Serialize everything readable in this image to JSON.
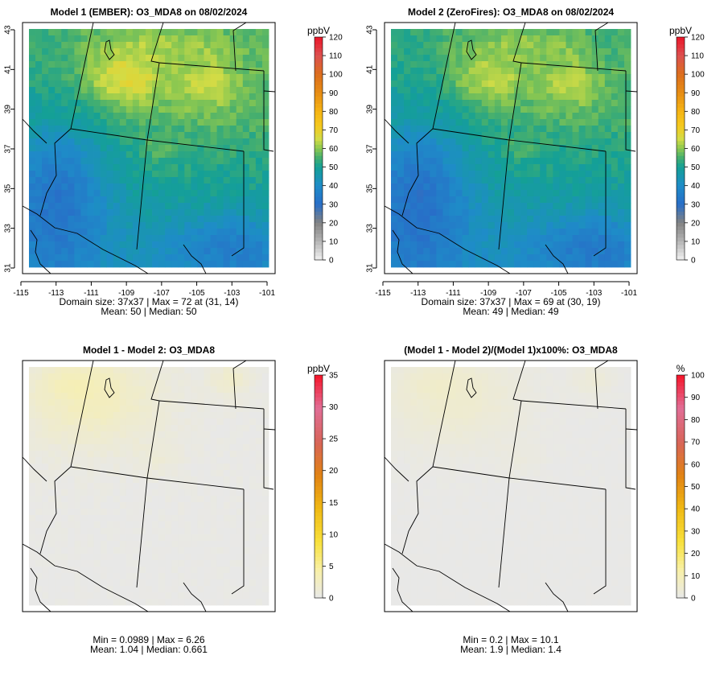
{
  "chart_data": [
    {
      "type": "heatmap",
      "title": "Model 1 (EMBER): O3_MDA8 on 08/02/2024",
      "colorbar_title": "ppbV",
      "colorbar_ticks": [
        "0",
        "10",
        "20",
        "30",
        "40",
        "50",
        "60",
        "70",
        "80",
        "90",
        "100",
        "110",
        "120"
      ],
      "x_ticks": [
        "-115",
        "-113",
        "-111",
        "-109",
        "-107",
        "-105",
        "-103",
        "-101"
      ],
      "y_ticks": [
        "31",
        "33",
        "35",
        "37",
        "39",
        "41",
        "43"
      ],
      "show_axes": true,
      "grid": false,
      "color_scheme": "ozone",
      "range": [
        0,
        120
      ],
      "stats_line1": "Domain size: 37x37 | Max = 72 at (31, 14)",
      "stats_line2": "Mean: 50 |  Median: 50",
      "max": 72,
      "mean": 50,
      "median": 50
    },
    {
      "type": "heatmap",
      "title": "Model 2 (ZeroFires): O3_MDA8 on 08/02/2024",
      "colorbar_title": "ppbV",
      "colorbar_ticks": [
        "0",
        "10",
        "20",
        "30",
        "40",
        "50",
        "60",
        "70",
        "80",
        "90",
        "100",
        "110",
        "120"
      ],
      "x_ticks": [
        "-115",
        "-113",
        "-111",
        "-109",
        "-107",
        "-105",
        "-103",
        "-101"
      ],
      "y_ticks": [
        "31",
        "33",
        "35",
        "37",
        "39",
        "41",
        "43"
      ],
      "show_axes": true,
      "grid": false,
      "color_scheme": "ozone",
      "range": [
        0,
        120
      ],
      "stats_line1": "Domain size: 37x37 | Max = 69 at (30, 19)",
      "stats_line2": "Mean: 49 |  Median: 49",
      "max": 69,
      "mean": 49,
      "median": 49
    },
    {
      "type": "heatmap",
      "title": "Model 1 - Model 2: O3_MDA8",
      "colorbar_title": "ppbV",
      "colorbar_ticks": [
        "0",
        "5",
        "10",
        "15",
        "20",
        "25",
        "30",
        "35"
      ],
      "x_ticks": [],
      "y_ticks": [],
      "show_axes": false,
      "grid": false,
      "color_scheme": "difference",
      "range": [
        0,
        35
      ],
      "stats_line1": "Min = 0.0989 | Max = 6.26",
      "stats_line2": "Mean: 1.04 |  Median: 0.661",
      "min": 0.0989,
      "max": 6.26,
      "mean": 1.04,
      "median": 0.661
    },
    {
      "type": "heatmap",
      "title": "(Model 1 - Model 2)/(Model 1)x100%: O3_MDA8",
      "colorbar_title": "%",
      "colorbar_ticks": [
        "0",
        "10",
        "20",
        "30",
        "40",
        "50",
        "60",
        "70",
        "80",
        "90",
        "100"
      ],
      "x_ticks": [],
      "y_ticks": [],
      "show_axes": false,
      "grid": false,
      "color_scheme": "difference",
      "range": [
        0,
        100
      ],
      "stats_line1": "Min = 0.2 | Max = 10.1",
      "stats_line2": "Mean: 1.9 |  Median: 1.4",
      "min": 0.2,
      "max": 10.1,
      "mean": 1.9,
      "median": 1.4
    }
  ]
}
